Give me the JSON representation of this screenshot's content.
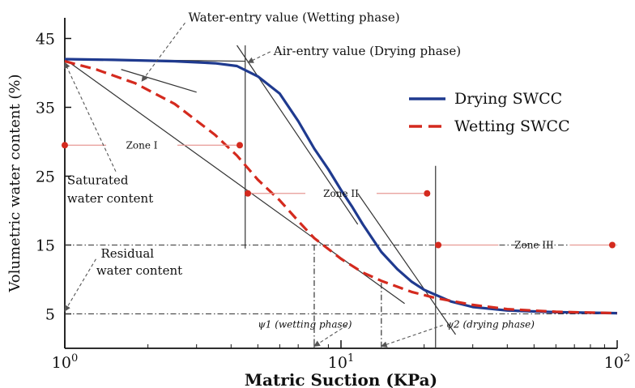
{
  "chart_data": {
    "type": "line",
    "xscale": "log",
    "xlim": [
      1,
      100
    ],
    "ylim": [
      0,
      48
    ],
    "xlabel": "Matric Suction (KPa)",
    "ylabel": "Volumetric water content (%)",
    "yticks": [
      {
        "value": 5,
        "label": "5"
      },
      {
        "value": 15,
        "label": "15"
      },
      {
        "value": 25,
        "label": "25"
      },
      {
        "value": 35,
        "label": "35"
      },
      {
        "value": 45,
        "label": "45"
      }
    ],
    "xticks": [
      {
        "value": 1,
        "base": "10",
        "exp": "0"
      },
      {
        "value": 10,
        "base": "10",
        "exp": "1"
      },
      {
        "value": 100,
        "base": "10",
        "exp": "2"
      }
    ],
    "legend_position": "top-right",
    "series": [
      {
        "name": "Drying SWCC",
        "color": "#1f3a8f",
        "style": "solid",
        "points": [
          [
            1,
            42
          ],
          [
            1.5,
            41.9
          ],
          [
            2.5,
            41.7
          ],
          [
            3.5,
            41.4
          ],
          [
            4.2,
            41
          ],
          [
            5,
            39.5
          ],
          [
            6,
            37
          ],
          [
            7,
            33
          ],
          [
            8,
            29
          ],
          [
            9,
            26
          ],
          [
            10,
            23
          ],
          [
            11,
            20.5
          ],
          [
            12,
            18
          ],
          [
            14,
            14
          ],
          [
            16,
            11.5
          ],
          [
            18,
            9.7
          ],
          [
            20,
            8.5
          ],
          [
            25,
            6.8
          ],
          [
            30,
            6
          ],
          [
            40,
            5.5
          ],
          [
            60,
            5.25
          ],
          [
            100,
            5.1
          ]
        ]
      },
      {
        "name": "Wetting SWCC",
        "color": "#d42a1e",
        "style": "dashed",
        "points": [
          [
            1,
            41.7
          ],
          [
            1.3,
            40.5
          ],
          [
            1.8,
            38.5
          ],
          [
            2.5,
            35.5
          ],
          [
            3.5,
            31
          ],
          [
            4.2,
            28
          ],
          [
            5,
            24.5
          ],
          [
            6,
            21.5
          ],
          [
            7,
            18.5
          ],
          [
            8,
            16
          ],
          [
            10,
            13
          ],
          [
            12,
            11
          ],
          [
            14,
            9.8
          ],
          [
            18,
            8.2
          ],
          [
            22,
            7.3
          ],
          [
            30,
            6.3
          ],
          [
            40,
            5.7
          ],
          [
            60,
            5.3
          ],
          [
            100,
            5.1
          ]
        ]
      }
    ],
    "construction_lines": [
      {
        "points": [
          [
            1,
            42
          ],
          [
            4.5,
            41.7
          ]
        ],
        "color": "#333333"
      },
      {
        "points": [
          [
            1.6,
            40.5
          ],
          [
            3,
            37.2
          ]
        ],
        "color": "#333333"
      },
      {
        "points": [
          [
            4.2,
            44
          ],
          [
            11.5,
            18
          ]
        ],
        "color": "#333333"
      },
      {
        "points": [
          [
            1,
            42
          ],
          [
            17,
            6.5
          ]
        ],
        "color": "#333333"
      },
      {
        "points": [
          [
            11.5,
            22.5
          ],
          [
            26,
            2
          ]
        ],
        "color": "#333333"
      },
      {
        "points": [
          [
            4.5,
            44
          ],
          [
            4.5,
            14.5
          ]
        ],
        "color": "#333333"
      },
      {
        "points": [
          [
            22,
            26.5
          ],
          [
            22,
            0
          ]
        ],
        "color": "#333333"
      },
      {
        "points": [
          [
            8,
            15
          ],
          [
            8,
            0
          ]
        ],
        "color": "#333333",
        "style": "dashdot"
      },
      {
        "points": [
          [
            14,
            9.5
          ],
          [
            14,
            0
          ]
        ],
        "color": "#333333",
        "style": "dashdot"
      }
    ],
    "reference_lines": [
      {
        "y": 15,
        "x_from": 1,
        "x_to": 100,
        "style": "dashdot",
        "color": "#333333"
      },
      {
        "y": 5,
        "x_from": 1,
        "x_to": 100,
        "style": "dashdot",
        "color": "#333333"
      }
    ],
    "zones": [
      {
        "label": "Zone I",
        "y": 29.5,
        "from": 1,
        "to": 4.3,
        "label_at": 1.9
      },
      {
        "label": "Zone II",
        "y": 22.5,
        "from": 4.6,
        "to": 20.5,
        "label_at": 10
      },
      {
        "label": "Zone III",
        "y": 15,
        "from": 22.5,
        "to": 96,
        "label_at": 50
      }
    ],
    "annotations": [
      {
        "text": "Water-entry value (Wetting phase)",
        "text_at": [
          2.8,
          47.5
        ],
        "arrow_to": [
          1.9,
          38.8
        ]
      },
      {
        "text": "Air-entry value (Drying phase)",
        "text_at": [
          5.7,
          42.6
        ],
        "arrow_to": [
          4.6,
          41.5
        ]
      },
      {
        "text": "Saturated",
        "text_at": [
          1.02,
          23.8
        ],
        "arrow_to": [
          1,
          41.5
        ]
      },
      {
        "text": "water content",
        "text_at": [
          1.02,
          21.2
        ]
      },
      {
        "text": "Residual",
        "text_at": [
          1.35,
          13.2
        ],
        "arrow_to": [
          1,
          5.4
        ]
      },
      {
        "text": "water content",
        "text_at": [
          1.3,
          10.7
        ]
      },
      {
        "text": "ψ1 (wetting phase)",
        "text_at": [
          5,
          3
        ],
        "arrow_to": [
          8,
          0.3
        ]
      },
      {
        "text": "ψ2 (drying phase)",
        "text_at": [
          24,
          3
        ],
        "arrow_to": [
          14,
          0.3
        ]
      }
    ]
  }
}
